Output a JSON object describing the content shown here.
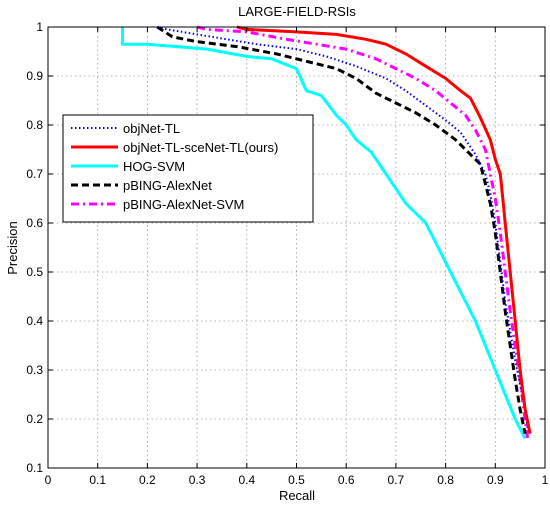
{
  "chart_data": {
    "type": "line",
    "title": "LARGE-FIELD-RSIs",
    "xlabel": "Recall",
    "ylabel": "Precision",
    "xlim": [
      0,
      1
    ],
    "ylim": [
      0.1,
      1
    ],
    "xticks": [
      "0",
      "0.1",
      "0.2",
      "0.3",
      "0.4",
      "0.5",
      "0.6",
      "0.7",
      "0.8",
      "0.9",
      "1"
    ],
    "yticks": [
      "0.1",
      "0.2",
      "0.3",
      "0.4",
      "0.5",
      "0.6",
      "0.7",
      "0.8",
      "0.9",
      "1"
    ],
    "grid": true,
    "legend_position": "middle-left",
    "series": [
      {
        "name": "objNet-TL",
        "color": "#0000ff",
        "style": "dotted",
        "x": [
          0.22,
          0.24,
          0.3,
          0.36,
          0.42,
          0.5,
          0.56,
          0.62,
          0.68,
          0.72,
          0.76,
          0.8,
          0.83,
          0.86,
          0.88,
          0.89,
          0.9,
          0.91,
          0.92,
          0.93,
          0.94,
          0.95,
          0.96,
          0.965
        ],
        "y": [
          1.0,
          0.995,
          0.985,
          0.975,
          0.965,
          0.955,
          0.94,
          0.92,
          0.895,
          0.87,
          0.84,
          0.81,
          0.785,
          0.74,
          0.7,
          0.66,
          0.6,
          0.52,
          0.44,
          0.38,
          0.32,
          0.27,
          0.22,
          0.18
        ]
      },
      {
        "name": "objNet-TL-sceNet-TL(ours)",
        "color": "#ff0000",
        "style": "solid",
        "x": [
          0.38,
          0.4,
          0.5,
          0.58,
          0.64,
          0.68,
          0.72,
          0.76,
          0.8,
          0.83,
          0.85,
          0.87,
          0.89,
          0.9,
          0.91,
          0.915,
          0.92,
          0.925,
          0.93,
          0.935,
          0.94,
          0.95,
          0.96,
          0.97
        ],
        "y": [
          1.0,
          0.995,
          0.99,
          0.985,
          0.975,
          0.965,
          0.945,
          0.92,
          0.895,
          0.87,
          0.855,
          0.815,
          0.77,
          0.73,
          0.7,
          0.65,
          0.6,
          0.55,
          0.5,
          0.45,
          0.4,
          0.3,
          0.22,
          0.17
        ]
      },
      {
        "name": "HOG-SVM",
        "color": "#00ffff",
        "style": "solid",
        "x": [
          0.15,
          0.15,
          0.2,
          0.32,
          0.4,
          0.45,
          0.5,
          0.52,
          0.55,
          0.58,
          0.6,
          0.62,
          0.65,
          0.68,
          0.7,
          0.72,
          0.74,
          0.76,
          0.78,
          0.8,
          0.82,
          0.84,
          0.86,
          0.88,
          0.9,
          0.92,
          0.94,
          0.96
        ],
        "y": [
          1.0,
          0.965,
          0.965,
          0.955,
          0.94,
          0.935,
          0.915,
          0.87,
          0.86,
          0.82,
          0.8,
          0.77,
          0.745,
          0.7,
          0.67,
          0.64,
          0.62,
          0.6,
          0.56,
          0.52,
          0.48,
          0.44,
          0.4,
          0.35,
          0.3,
          0.25,
          0.2,
          0.16
        ]
      },
      {
        "name": "pBING-AlexNet",
        "color": "#000000",
        "style": "dashed",
        "x": [
          0.22,
          0.25,
          0.3,
          0.38,
          0.46,
          0.52,
          0.58,
          0.62,
          0.66,
          0.7,
          0.74,
          0.78,
          0.82,
          0.85,
          0.87,
          0.88,
          0.89,
          0.9,
          0.91,
          0.92,
          0.93,
          0.94,
          0.95,
          0.96
        ],
        "y": [
          1.0,
          0.98,
          0.97,
          0.96,
          0.945,
          0.93,
          0.915,
          0.895,
          0.865,
          0.845,
          0.825,
          0.8,
          0.77,
          0.74,
          0.72,
          0.68,
          0.64,
          0.58,
          0.5,
          0.42,
          0.35,
          0.28,
          0.22,
          0.17
        ]
      },
      {
        "name": "pBING-AlexNet-SVM",
        "color": "#ff00ff",
        "style": "dashdot",
        "x": [
          0.3,
          0.32,
          0.4,
          0.48,
          0.54,
          0.6,
          0.66,
          0.7,
          0.74,
          0.78,
          0.81,
          0.84,
          0.86,
          0.88,
          0.89,
          0.9,
          0.91,
          0.92,
          0.93,
          0.94,
          0.95,
          0.96,
          0.965
        ],
        "y": [
          1.0,
          0.995,
          0.99,
          0.975,
          0.965,
          0.955,
          0.935,
          0.915,
          0.895,
          0.87,
          0.845,
          0.82,
          0.79,
          0.75,
          0.7,
          0.65,
          0.58,
          0.5,
          0.42,
          0.35,
          0.28,
          0.2,
          0.16
        ]
      }
    ]
  }
}
